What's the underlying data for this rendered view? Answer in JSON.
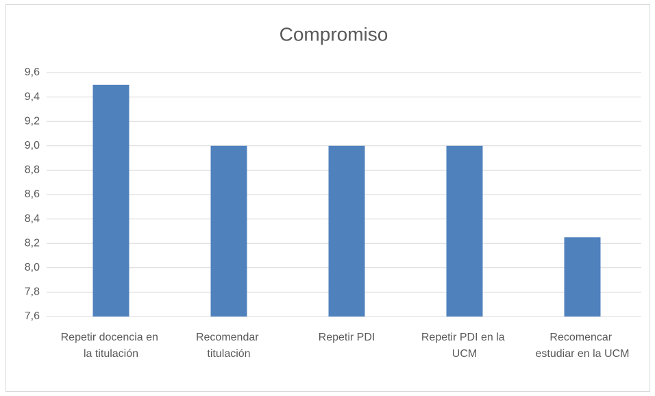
{
  "chart_data": {
    "type": "bar",
    "title": "Compromiso",
    "categories": [
      "Repetir docencia en la titulación",
      "Recomendar titulación",
      "Repetir PDI",
      "Repetir PDI en la UCM",
      "Recomencar estudiar en la UCM"
    ],
    "values": [
      9.5,
      9.0,
      9.0,
      9.0,
      8.25
    ],
    "color": "#4f81bd",
    "ylim": [
      7.6,
      9.6
    ],
    "yticks": [
      {
        "value": 7.6,
        "label": "7,6"
      },
      {
        "value": 7.8,
        "label": "7,8"
      },
      {
        "value": 8.0,
        "label": "8,0"
      },
      {
        "value": 8.2,
        "label": "8,2"
      },
      {
        "value": 8.4,
        "label": "8,4"
      },
      {
        "value": 8.6,
        "label": "8,6"
      },
      {
        "value": 8.8,
        "label": "8,8"
      },
      {
        "value": 9.0,
        "label": "9,0"
      },
      {
        "value": 9.2,
        "label": "9,2"
      },
      {
        "value": 9.4,
        "label": "9,4"
      },
      {
        "value": 9.6,
        "label": "9,6"
      }
    ],
    "grid": true
  }
}
